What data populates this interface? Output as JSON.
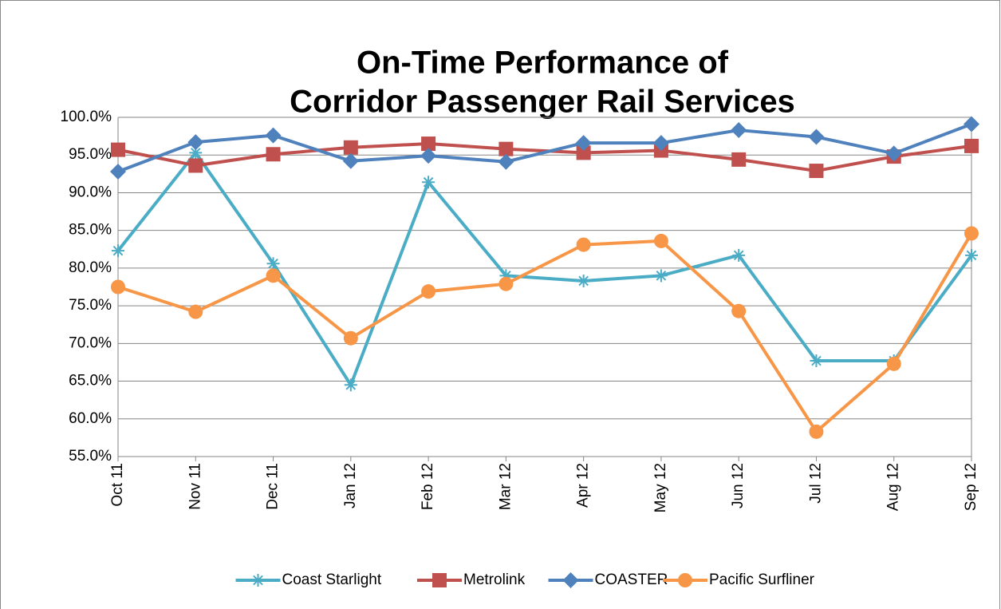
{
  "chart_data": {
    "type": "line",
    "title": [
      "On-Time Performance of",
      "Corridor Passenger Rail Services"
    ],
    "categories": [
      "Oct 11",
      "Nov 11",
      "Dec 11",
      "Jan 12",
      "Feb 12",
      "Mar 12",
      "Apr 12",
      "May 12",
      "Jun 12",
      "Jul 12",
      "Aug 12",
      "Sep 12"
    ],
    "series": [
      {
        "name": "Coast Starlight",
        "color": "#4bacc6",
        "marker": "star",
        "values": [
          82.3,
          95.3,
          80.6,
          64.5,
          91.4,
          79.0,
          78.3,
          79.0,
          81.7,
          67.7,
          67.7,
          81.7
        ]
      },
      {
        "name": "Metrolink",
        "color": "#c0504d",
        "marker": "square",
        "values": [
          95.7,
          93.6,
          95.1,
          96.0,
          96.5,
          95.8,
          95.3,
          95.6,
          94.4,
          92.9,
          94.8,
          96.2
        ]
      },
      {
        "name": "COASTER",
        "color": "#4f81bd",
        "marker": "diamond",
        "values": [
          92.8,
          96.7,
          97.6,
          94.2,
          94.9,
          94.1,
          96.6,
          96.6,
          98.3,
          97.4,
          95.2,
          99.1
        ]
      },
      {
        "name": "Pacific Surfliner",
        "color": "#f79646",
        "marker": "circle",
        "values": [
          77.5,
          74.2,
          79.0,
          70.7,
          76.9,
          77.9,
          83.1,
          83.6,
          74.3,
          58.3,
          67.3,
          84.6
        ]
      }
    ],
    "ylim": [
      55,
      100
    ],
    "yticks": [
      {
        "value": 55,
        "label": "55.0%"
      },
      {
        "value": 60,
        "label": "60.0%"
      },
      {
        "value": 65,
        "label": "65.0%"
      },
      {
        "value": 70,
        "label": "70.0%"
      },
      {
        "value": 75,
        "label": "75.0%"
      },
      {
        "value": 80,
        "label": "80.0%"
      },
      {
        "value": 85,
        "label": "85.0%"
      },
      {
        "value": 90,
        "label": "90.0%"
      },
      {
        "value": 95,
        "label": "95.0%"
      },
      {
        "value": 100,
        "label": "100.0%"
      }
    ],
    "grid": true,
    "legend": "bottom"
  }
}
